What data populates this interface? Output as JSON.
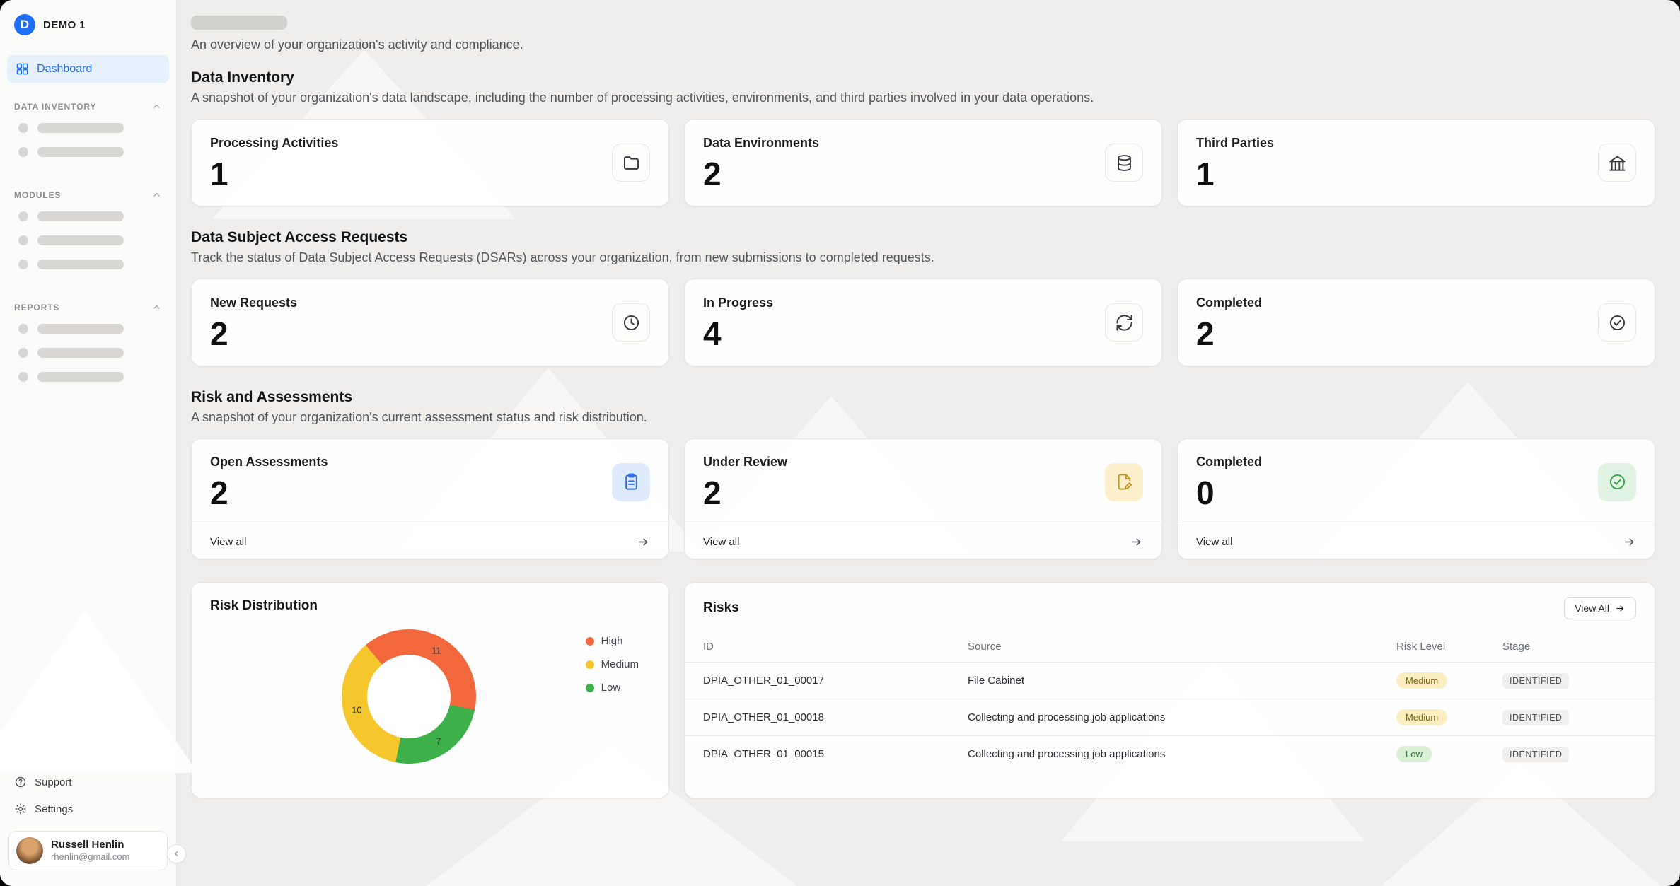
{
  "sidebar": {
    "org_name": "DEMO 1",
    "dashboard_label": "Dashboard",
    "groups": [
      {
        "label": "DATA INVENTORY"
      },
      {
        "label": "MODULES"
      },
      {
        "label": "REPORTS"
      }
    ],
    "support_label": "Support",
    "settings_label": "Settings",
    "user": {
      "name": "Russell Henlin",
      "email": "rhenlin@gmail.com"
    }
  },
  "page": {
    "subtitle": "An overview of your organization's activity and compliance."
  },
  "data_inventory": {
    "title": "Data Inventory",
    "subtitle": "A snapshot of your organization's data landscape, including the number of processing activities, environments, and third parties involved in your data operations.",
    "cards": [
      {
        "label": "Processing Activities",
        "value": "1",
        "icon": "folder-icon"
      },
      {
        "label": "Data Environments",
        "value": "2",
        "icon": "database-icon"
      },
      {
        "label": "Third Parties",
        "value": "1",
        "icon": "building-icon"
      }
    ]
  },
  "dsar": {
    "title": "Data Subject Access Requests",
    "subtitle": "Track the status of Data Subject Access Requests (DSARs) across your organization, from new submissions to completed requests.",
    "cards": [
      {
        "label": "New Requests",
        "value": "2",
        "icon": "clock-icon"
      },
      {
        "label": "In Progress",
        "value": "4",
        "icon": "refresh-icon"
      },
      {
        "label": "Completed",
        "value": "2",
        "icon": "check-circle-icon"
      }
    ]
  },
  "assessments": {
    "title": "Risk and Assessments",
    "subtitle": "A snapshot of your organization's current assessment status and risk distribution.",
    "cards": [
      {
        "label": "Open Assessments",
        "value": "2",
        "icon": "clipboard-icon",
        "chip_color": "#dfeafc",
        "link": "View all"
      },
      {
        "label": "Under Review",
        "value": "2",
        "icon": "file-pencil-icon",
        "chip_color": "#fcf0cc",
        "link": "View all"
      },
      {
        "label": "Completed",
        "value": "0",
        "icon": "check-circle-icon",
        "chip_color": "#e1f4e3",
        "link": "View all"
      }
    ]
  },
  "risk_distribution": {
    "title": "Risk Distribution"
  },
  "chart_data": {
    "type": "pie",
    "donut": true,
    "title": "Risk Distribution",
    "total": 28,
    "start_angle_deg": -40,
    "segments": [
      {
        "label": "High",
        "value": 11,
        "color": "#f2683c"
      },
      {
        "label": "Low",
        "value": 7,
        "color": "#3db04a"
      },
      {
        "label": "Medium",
        "value": 10,
        "color": "#f6c62d"
      }
    ],
    "legend": [
      {
        "label": "High",
        "color": "#f2683c"
      },
      {
        "label": "Medium",
        "color": "#f6c62d"
      },
      {
        "label": "Low",
        "color": "#3db04a"
      }
    ],
    "legend_position": "right"
  },
  "risks": {
    "title": "Risks",
    "view_all_label": "View All",
    "columns": [
      "ID",
      "Source",
      "Risk Level",
      "Stage"
    ],
    "rows": [
      {
        "id": "DPIA_OTHER_01_00017",
        "source": "File Cabinet",
        "risk_level": "Medium",
        "stage": "IDENTIFIED"
      },
      {
        "id": "DPIA_OTHER_01_00018",
        "source": "Collecting and processing job applications",
        "risk_level": "Medium",
        "stage": "IDENTIFIED"
      },
      {
        "id": "DPIA_OTHER_01_00015",
        "source": "Collecting and processing job applications",
        "risk_level": "Low",
        "stage": "IDENTIFIED"
      }
    ]
  }
}
